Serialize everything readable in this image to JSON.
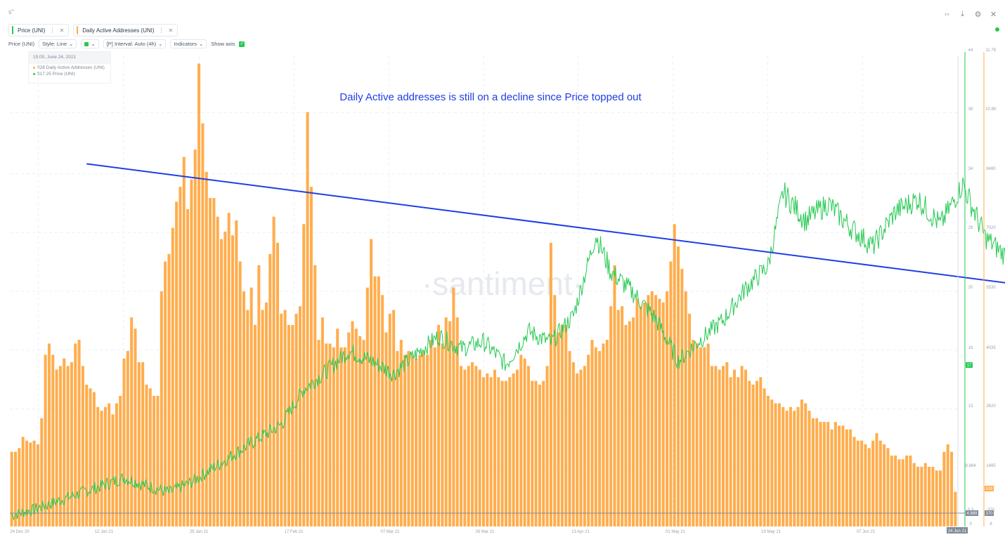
{
  "toolbar": {
    "logo": "s\"",
    "icons": [
      "expand-icon",
      "download-icon",
      "settings-icon",
      "close-icon"
    ]
  },
  "metrics": [
    {
      "label": "Price (UNI)",
      "color": "#26c953"
    },
    {
      "label": "Daily Active Addresses (UNI)",
      "color": "#ffad4d"
    }
  ],
  "controls": {
    "metric": "Price (UNI)",
    "style": "Style: Line",
    "interval": "[P] Interval: Auto (4h)",
    "indicators": "Indicators",
    "show_axis": "Show axis"
  },
  "tooltip": {
    "date": "15:00, June 24, 2021",
    "daa": "928 Daily Active Addresses (UNI)",
    "price": "$17.25 Price (UNI)"
  },
  "watermark": "·santiment·",
  "annotation": "Daily Active addresses is still on a decline since Price topped out",
  "chart_data": {
    "type": "bar+line",
    "x_ticks": [
      "24 Dec 20",
      "12 Jan 21",
      "29 Jan 21",
      "17 Feb 21",
      "07 Mar 21",
      "26 Mar 21",
      "13 Apr 21",
      "01 May 21",
      "19 May 21",
      "07 Jun 21",
      "24 Jun 21"
    ],
    "price_axis": {
      "ticks": [
        "3",
        "5.3",
        "8.884",
        "13",
        "16",
        "20",
        "29",
        "34",
        "38",
        "44"
      ],
      "current": "17",
      "low": "4.889"
    },
    "daa_axis": {
      "ticks": [
        "8",
        "370",
        "1485",
        "2620",
        "4035",
        "5530",
        "7020",
        "8480",
        "10.8K",
        "11.7K"
      ],
      "current": "928",
      "low": "370"
    },
    "series": [
      {
        "name": "Daily Active Addresses (UNI)",
        "color": "#ffad4d",
        "values": [
          2000,
          2000,
          2100,
          2400,
          2300,
          2250,
          2300,
          2200,
          2900,
          4600,
          4900,
          4600,
          4200,
          4300,
          4500,
          4300,
          4400,
          4900,
          5000,
          4300,
          3800,
          3700,
          3600,
          3200,
          3100,
          3200,
          3300,
          3000,
          3300,
          3500,
          4500,
          4700,
          5600,
          5300,
          4400,
          4400,
          3800,
          3700,
          3500,
          3500,
          6300,
          7100,
          7300,
          8000,
          8700,
          9100,
          9900,
          8500,
          9300,
          10100,
          12400,
          10800,
          9500,
          8800,
          8800,
          8300,
          7700,
          7900,
          8400,
          7800,
          8200,
          7100,
          6300,
          5800,
          6400,
          5400,
          7000,
          5800,
          6000,
          7300,
          8300,
          7600,
          5700,
          5800,
          5400,
          5400,
          5700,
          5900,
          8100,
          11100,
          9100,
          7000,
          5000,
          5600,
          4900,
          4900,
          4800,
          5300,
          4800,
          4800,
          5200,
          5500,
          5300,
          5100,
          5000,
          6400,
          7700,
          6700,
          6700,
          6200,
          5200,
          5700,
          5800,
          4700,
          5000,
          4600,
          4700,
          4600,
          4500,
          4600,
          4700,
          4600,
          5000,
          4800,
          5400,
          4900,
          5600,
          5500,
          6400,
          5600,
          4300,
          4200,
          4300,
          4400,
          4300,
          4200,
          4000,
          4100,
          4000,
          4200,
          4000,
          3900,
          3900,
          4000,
          4100,
          4200,
          4600,
          4500,
          4300,
          3900,
          3900,
          3800,
          3900,
          4300,
          7600,
          6200,
          5200,
          5400,
          5400,
          4700,
          4400,
          4100,
          4200,
          4300,
          4600,
          5000,
          4800,
          4700,
          4900,
          5000,
          5900,
          7000,
          5800,
          5900,
          5400,
          5500,
          5600,
          6100,
          5900,
          6000,
          6200,
          6300,
          6200,
          6100,
          6000,
          6300,
          7100,
          8100,
          7500,
          6900,
          6300,
          5700,
          5000,
          4900,
          4800,
          4800,
          4900,
          4300,
          4300,
          4200,
          4300,
          4400,
          4000,
          4200,
          4000,
          4300,
          4200,
          3900,
          3800,
          3900,
          4000,
          3700,
          3500,
          3400,
          3300,
          3300,
          3200,
          3100,
          3200,
          3100,
          3200,
          3400,
          3300,
          3100,
          2900,
          2900,
          2800,
          2800,
          2800,
          2600,
          2800,
          2700,
          2700,
          2600,
          2600,
          2400,
          2300,
          2300,
          2200,
          2100,
          2300,
          2500,
          2300,
          2200,
          2100,
          1900,
          1900,
          1800,
          1800,
          1900,
          1900,
          1700,
          1600,
          1600,
          1700,
          1600,
          1600,
          1500,
          1500,
          2000,
          2200,
          2000,
          928
        ]
      },
      {
        "name": "Price (UNI)",
        "color": "#26c953",
        "anchors": [
          [
            0,
            4.0
          ],
          [
            6,
            4.5
          ],
          [
            12,
            5.2
          ],
          [
            18,
            5.9
          ],
          [
            24,
            6.6
          ],
          [
            30,
            7.3
          ],
          [
            36,
            6.6
          ],
          [
            42,
            6.0
          ],
          [
            48,
            6.9
          ],
          [
            54,
            8.2
          ],
          [
            60,
            9.5
          ],
          [
            66,
            10.8
          ],
          [
            72,
            12.0
          ],
          [
            78,
            15.1
          ],
          [
            84,
            16.7
          ],
          [
            90,
            18.5
          ],
          [
            96,
            17.6
          ],
          [
            102,
            16.5
          ],
          [
            108,
            18.2
          ],
          [
            114,
            19.8
          ],
          [
            120,
            18.7
          ],
          [
            126,
            19.3
          ],
          [
            132,
            17.3
          ],
          [
            138,
            20.2
          ],
          [
            144,
            19.2
          ],
          [
            150,
            21.6
          ],
          [
            156,
            28.7
          ],
          [
            160,
            25.5
          ],
          [
            166,
            23.6
          ],
          [
            172,
            21.3
          ],
          [
            178,
            17.6
          ],
          [
            184,
            19.5
          ],
          [
            190,
            21.2
          ],
          [
            196,
            24.0
          ],
          [
            202,
            26.0
          ],
          [
            206,
            32.5
          ],
          [
            212,
            30.0
          ],
          [
            218,
            31.5
          ],
          [
            224,
            29.4
          ],
          [
            230,
            27.7
          ],
          [
            236,
            30.8
          ],
          [
            242,
            31.9
          ],
          [
            248,
            29.6
          ],
          [
            254,
            33.2
          ],
          [
            260,
            28.5
          ],
          [
            266,
            26.7
          ],
          [
            272,
            25.2
          ],
          [
            278,
            26.9
          ],
          [
            284,
            27.3
          ],
          [
            290,
            30.0
          ],
          [
            296,
            31.1
          ],
          [
            302,
            29.9
          ],
          [
            308,
            29.1
          ],
          [
            314,
            28.1
          ],
          [
            320,
            34.3
          ],
          [
            326,
            35.7
          ],
          [
            332,
            31.8
          ],
          [
            338,
            29.3
          ],
          [
            344,
            32.9
          ],
          [
            350,
            30.6
          ],
          [
            356,
            33.4
          ],
          [
            362,
            35.2
          ],
          [
            368,
            37.7
          ],
          [
            374,
            40.5
          ],
          [
            380,
            43.0
          ],
          [
            386,
            41.8
          ],
          [
            392,
            40.3
          ],
          [
            398,
            41.5
          ],
          [
            404,
            38.4
          ],
          [
            410,
            37.5
          ],
          [
            416,
            35.5
          ],
          [
            422,
            34.7
          ],
          [
            428,
            29.3
          ],
          [
            434,
            25.1
          ],
          [
            440,
            22.0
          ],
          [
            446,
            15.6
          ],
          [
            452,
            22.0
          ],
          [
            458,
            25.1
          ],
          [
            464,
            23.9
          ],
          [
            470,
            23.6
          ],
          [
            476,
            24.9
          ],
          [
            482,
            25.0
          ],
          [
            488,
            22.4
          ],
          [
            494,
            21.8
          ],
          [
            500,
            20.3
          ],
          [
            506,
            18.6
          ],
          [
            512,
            18.6
          ],
          [
            518,
            17.1
          ],
          [
            524,
            17.6
          ],
          [
            528,
            16.2
          ],
          [
            532,
            15.0
          ],
          [
            537,
            17.0
          ]
        ]
      }
    ],
    "trend_line": {
      "from": {
        "x": 20,
        "y": 35
      },
      "to": {
        "x": 537,
        "y": 12.8
      }
    }
  }
}
